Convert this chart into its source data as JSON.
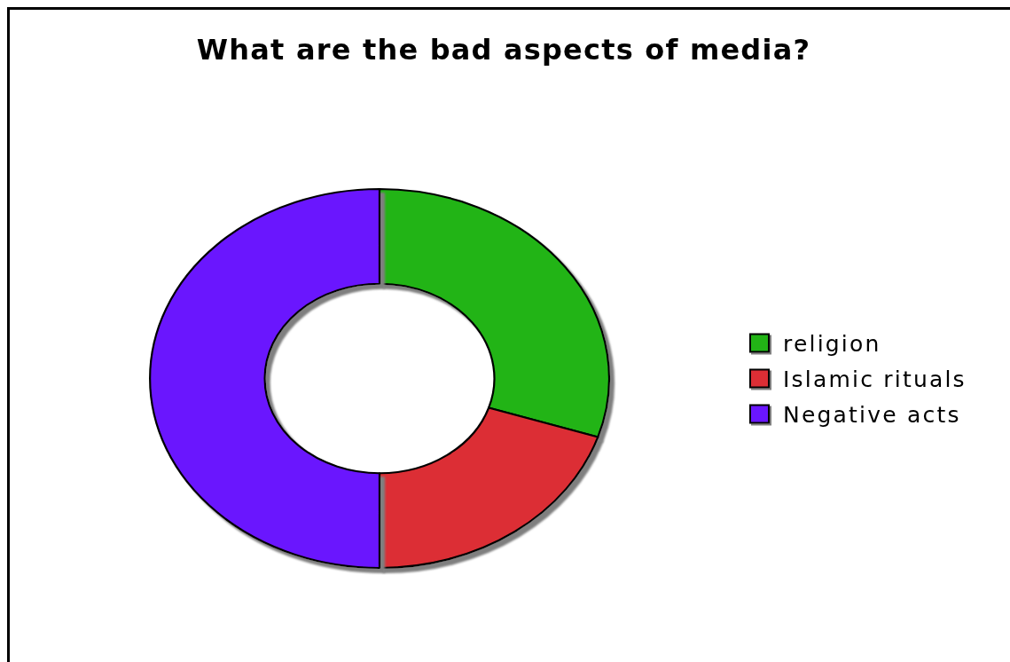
{
  "chart_data": {
    "type": "donut",
    "title": "What are the bad aspects of media?",
    "categories": [
      "religion",
      "Islamic rituals",
      "Negative acts"
    ],
    "values": [
      30,
      20,
      50
    ],
    "colors": [
      "#20b418",
      "#dc2e34",
      "#6a14fe"
    ],
    "legend": "right"
  }
}
